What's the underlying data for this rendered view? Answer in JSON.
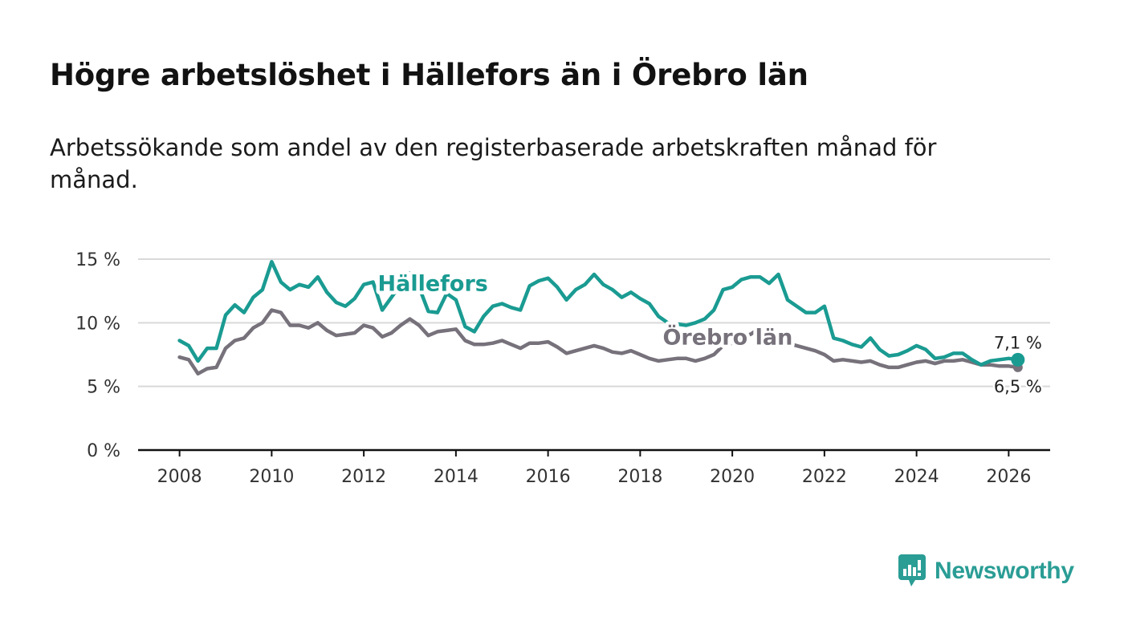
{
  "title": "Högre arbetslöshet i Hällefors än i Örebro län",
  "subtitle": "Arbetssökande som andel av den registerbaserade arbetskraften månad för månad.",
  "brand": "Newsworthy",
  "colors": {
    "hallefors": "#1a9b92",
    "orebro": "#76717a",
    "grid": "#d9d9d9",
    "axis": "#111111"
  },
  "chart_data": {
    "type": "line",
    "title": "Högre arbetslöshet i Hällefors än i Örebro län",
    "ylim": [
      0,
      15
    ],
    "xlim": [
      2007.1,
      2026.9
    ],
    "yticks": [
      0,
      5,
      10,
      15
    ],
    "ytick_labels": [
      "0 %",
      "5 %",
      "10 %",
      "15 %"
    ],
    "xticks": [
      2008,
      2010,
      2012,
      2014,
      2016,
      2018,
      2020,
      2022,
      2024,
      2026
    ],
    "xtick_labels": [
      "2008",
      "2010",
      "2012",
      "2014",
      "2016",
      "2018",
      "2020",
      "2022",
      "2024",
      "2026"
    ],
    "grid": true,
    "series": [
      {
        "name": "Hällefors",
        "color": "#1a9b92",
        "end_label": "7,1 %",
        "x": [
          2008.0,
          2008.2,
          2008.4,
          2008.6,
          2008.8,
          2009.0,
          2009.2,
          2009.4,
          2009.6,
          2009.8,
          2010.0,
          2010.2,
          2010.4,
          2010.6,
          2010.8,
          2011.0,
          2011.2,
          2011.4,
          2011.6,
          2011.8,
          2012.0,
          2012.2,
          2012.4,
          2012.6,
          2012.8,
          2013.0,
          2013.2,
          2013.4,
          2013.6,
          2013.8,
          2014.0,
          2014.2,
          2014.4,
          2014.6,
          2014.8,
          2015.0,
          2015.2,
          2015.4,
          2015.6,
          2015.8,
          2016.0,
          2016.2,
          2016.4,
          2016.6,
          2016.8,
          2017.0,
          2017.2,
          2017.4,
          2017.6,
          2017.8,
          2018.0,
          2018.2,
          2018.4,
          2018.6,
          2018.8,
          2019.0,
          2019.2,
          2019.4,
          2019.6,
          2019.8,
          2020.0,
          2020.2,
          2020.4,
          2020.6,
          2020.8,
          2021.0,
          2021.2,
          2021.4,
          2021.6,
          2021.8,
          2022.0,
          2022.2,
          2022.4,
          2022.6,
          2022.8,
          2023.0,
          2023.2,
          2023.4,
          2023.6,
          2023.8,
          2024.0,
          2024.2,
          2024.4,
          2024.6,
          2024.8,
          2025.0,
          2025.2,
          2025.4,
          2025.6,
          2025.8,
          2026.0,
          2026.2
        ],
        "values": [
          8.6,
          8.2,
          7.0,
          8.0,
          8.0,
          10.6,
          11.4,
          10.8,
          12.0,
          12.6,
          14.8,
          13.2,
          12.6,
          13.0,
          12.8,
          13.6,
          12.4,
          11.6,
          11.3,
          11.9,
          13.0,
          13.2,
          11.0,
          12.0,
          13.0,
          13.9,
          12.8,
          10.9,
          10.8,
          12.3,
          11.8,
          9.7,
          9.3,
          10.5,
          11.3,
          11.5,
          11.2,
          11.0,
          12.9,
          13.3,
          13.5,
          12.8,
          11.8,
          12.6,
          13.0,
          13.8,
          13.0,
          12.6,
          12.0,
          12.4,
          11.9,
          11.5,
          10.5,
          10.0,
          9.9,
          9.8,
          10.0,
          10.3,
          11.0,
          12.6,
          12.8,
          13.4,
          13.6,
          13.6,
          13.1,
          13.8,
          11.8,
          11.3,
          10.8,
          10.8,
          11.3,
          8.8,
          8.6,
          8.3,
          8.1,
          8.8,
          7.9,
          7.4,
          7.5,
          7.8,
          8.2,
          7.9,
          7.2,
          7.3,
          7.6,
          7.6,
          7.1,
          6.7,
          7.0,
          7.1,
          7.2,
          7.1
        ]
      },
      {
        "name": "Örebro län",
        "color": "#76717a",
        "end_label": "6,5 %",
        "x": [
          2008.0,
          2008.2,
          2008.4,
          2008.6,
          2008.8,
          2009.0,
          2009.2,
          2009.4,
          2009.6,
          2009.8,
          2010.0,
          2010.2,
          2010.4,
          2010.6,
          2010.8,
          2011.0,
          2011.2,
          2011.4,
          2011.6,
          2011.8,
          2012.0,
          2012.2,
          2012.4,
          2012.6,
          2012.8,
          2013.0,
          2013.2,
          2013.4,
          2013.6,
          2013.8,
          2014.0,
          2014.2,
          2014.4,
          2014.6,
          2014.8,
          2015.0,
          2015.2,
          2015.4,
          2015.6,
          2015.8,
          2016.0,
          2016.2,
          2016.4,
          2016.6,
          2016.8,
          2017.0,
          2017.2,
          2017.4,
          2017.6,
          2017.8,
          2018.0,
          2018.2,
          2018.4,
          2018.6,
          2018.8,
          2019.0,
          2019.2,
          2019.4,
          2019.6,
          2019.8,
          2020.0,
          2020.2,
          2020.4,
          2020.6,
          2020.8,
          2021.0,
          2021.2,
          2021.4,
          2021.6,
          2021.8,
          2022.0,
          2022.2,
          2022.4,
          2022.6,
          2022.8,
          2023.0,
          2023.2,
          2023.4,
          2023.6,
          2023.8,
          2024.0,
          2024.2,
          2024.4,
          2024.6,
          2024.8,
          2025.0,
          2025.2,
          2025.4,
          2025.6,
          2025.8,
          2026.0,
          2026.2
        ],
        "values": [
          7.3,
          7.1,
          6.0,
          6.4,
          6.5,
          8.0,
          8.6,
          8.8,
          9.6,
          10.0,
          11.0,
          10.8,
          9.8,
          9.8,
          9.6,
          10.0,
          9.4,
          9.0,
          9.1,
          9.2,
          9.8,
          9.6,
          8.9,
          9.2,
          9.8,
          10.3,
          9.8,
          9.0,
          9.3,
          9.4,
          9.5,
          8.6,
          8.3,
          8.3,
          8.4,
          8.6,
          8.3,
          8.0,
          8.4,
          8.4,
          8.5,
          8.1,
          7.6,
          7.8,
          8.0,
          8.2,
          8.0,
          7.7,
          7.6,
          7.8,
          7.5,
          7.2,
          7.0,
          7.1,
          7.2,
          7.2,
          7.0,
          7.2,
          7.5,
          8.2,
          8.4,
          8.9,
          9.1,
          9.6,
          9.0,
          8.8,
          8.4,
          8.2,
          8.0,
          7.8,
          7.5,
          7.0,
          7.1,
          7.0,
          6.9,
          7.0,
          6.7,
          6.5,
          6.5,
          6.7,
          6.9,
          7.0,
          6.8,
          7.0,
          7.0,
          7.1,
          6.9,
          6.7,
          6.7,
          6.6,
          6.6,
          6.5
        ]
      }
    ],
    "annotations": [
      {
        "text": "Hällefors",
        "x": 2013.5,
        "y": 12.5,
        "series": "Hällefors"
      },
      {
        "text": "Örebro län",
        "x": 2019.9,
        "y": 8.3,
        "series": "Örebro län"
      }
    ]
  }
}
